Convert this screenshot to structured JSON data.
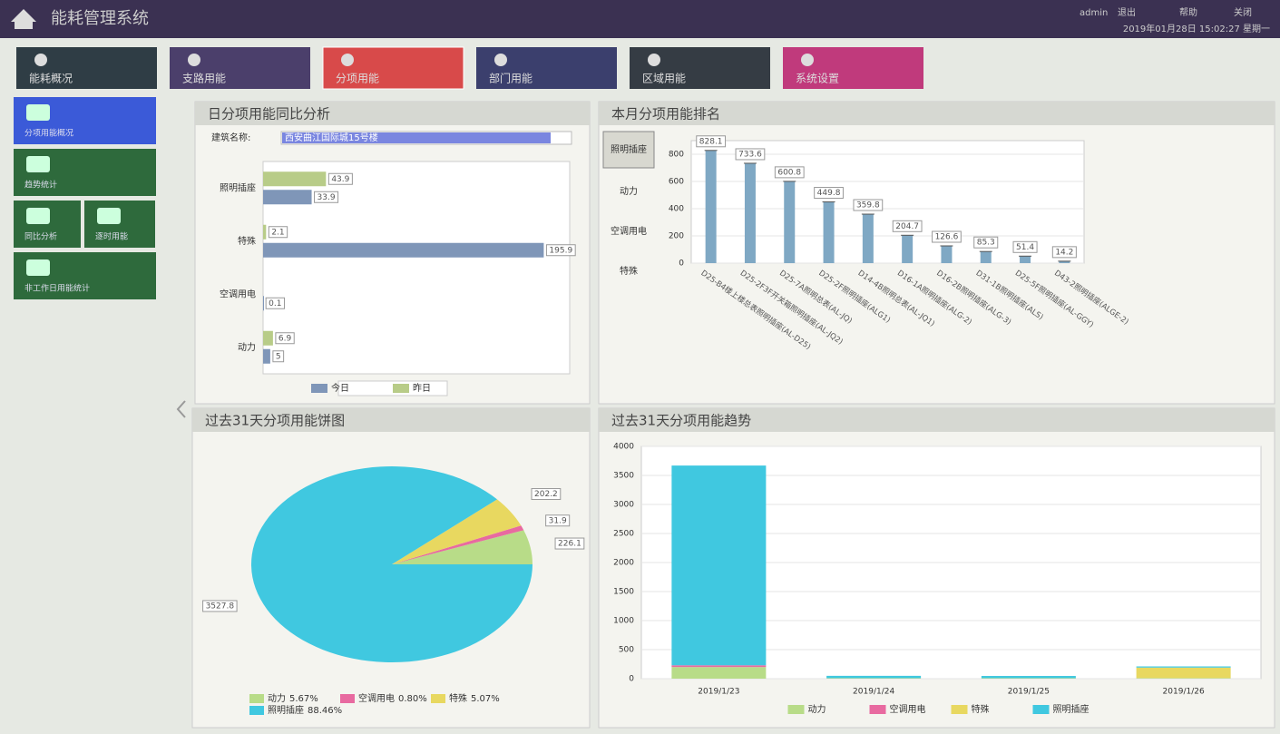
{
  "header": {
    "title": "能耗管理系统",
    "user_items": [
      "admin",
      "退出",
      "帮助",
      "关闭"
    ],
    "datetime": "2019年01月28日 15:02:27 星期一"
  },
  "nav": [
    "能耗概况",
    "支路用能",
    "分项用能",
    "部门用能",
    "区域用能",
    "系统设置"
  ],
  "sidebar": [
    "分项用能概况",
    "趋势统计",
    "同比分析",
    "逐时用能",
    "非工作日用能统计"
  ],
  "chart_data": [
    {
      "type": "bar",
      "orientation": "horizontal",
      "title": "日分项用能同比分析",
      "building_label": "建筑名称:",
      "building": "西安曲江国际城15号楼",
      "categories": [
        "照明插座",
        "特殊",
        "空调用电",
        "动力"
      ],
      "series": [
        {
          "name": "今日",
          "color": "#7f96b8",
          "values": [
            33.9,
            195.9,
            0.1,
            5
          ]
        },
        {
          "name": "昨日",
          "color": "#b8cc88",
          "values": [
            43.9,
            2.1,
            null,
            6.9
          ]
        }
      ],
      "xlim": [
        0,
        214
      ]
    },
    {
      "type": "bar",
      "title": "本月分项用能排名",
      "tabs": [
        "照明插座",
        "动力",
        "空调用电",
        "特殊"
      ],
      "categories": [
        "D25-B4楼上楼总表照明插座(AL-D25)",
        "D25-2F3F开关箱照明插座(AL-JQ2)",
        "D25-7A照明总表(AL-JQ)",
        "D25-2F照明插座(ALG1)",
        "D14-4B照明总表(AL-JQ1)",
        "D16-1A照明插座(ALG-2)",
        "D16-2B照明插座(ALG-3)",
        "D31-1B照明插座(ALS)",
        "D25-5F照明插座(AL-GGY)",
        "D43-2照明插座(ALGE-2)"
      ],
      "values": [
        828.1,
        733.6,
        600.8,
        449.8,
        359.8,
        204.7,
        126.6,
        85.3,
        51.4,
        14.2
      ],
      "color": "#7fa8c4",
      "ylim": [
        0,
        900
      ],
      "yticks": [
        0,
        200,
        400,
        600,
        800
      ]
    },
    {
      "type": "pie",
      "title": "过去31天分项用能饼图",
      "categories": [
        "动力",
        "空调用电",
        "特殊",
        "照明插座"
      ],
      "values": [
        226.1,
        31.9,
        202.2,
        3527.8
      ],
      "colors": [
        "#b8dc88",
        "#e86aa0",
        "#e8d860",
        "#40c8e0"
      ],
      "percent_labels": [
        "5.67%",
        "0.80%",
        "5.07%",
        "88.46%"
      ]
    },
    {
      "type": "bar",
      "stacked": true,
      "title": "过去31天分项用能趋势",
      "categories": [
        "2019/1/23",
        "2019/1/24",
        "2019/1/25",
        "2019/1/26"
      ],
      "series": [
        {
          "name": "动力",
          "color": "#b8dc88",
          "values": [
            200,
            8,
            8,
            10.1
          ]
        },
        {
          "name": "空调用电",
          "color": "#e86aa0",
          "values": [
            30,
            0.6,
            0.5,
            0.8
          ]
        },
        {
          "name": "特殊",
          "color": "#e8d860",
          "values": [
            0,
            0,
            0,
            180
          ]
        },
        {
          "name": "照明插座",
          "color": "#40c8e0",
          "values": [
            3440,
            40,
            38,
            20
          ]
        }
      ],
      "ylim": [
        0,
        4000
      ],
      "yticks": [
        0,
        500,
        1000,
        1500,
        2000,
        2500,
        3000,
        3500,
        4000
      ]
    }
  ]
}
